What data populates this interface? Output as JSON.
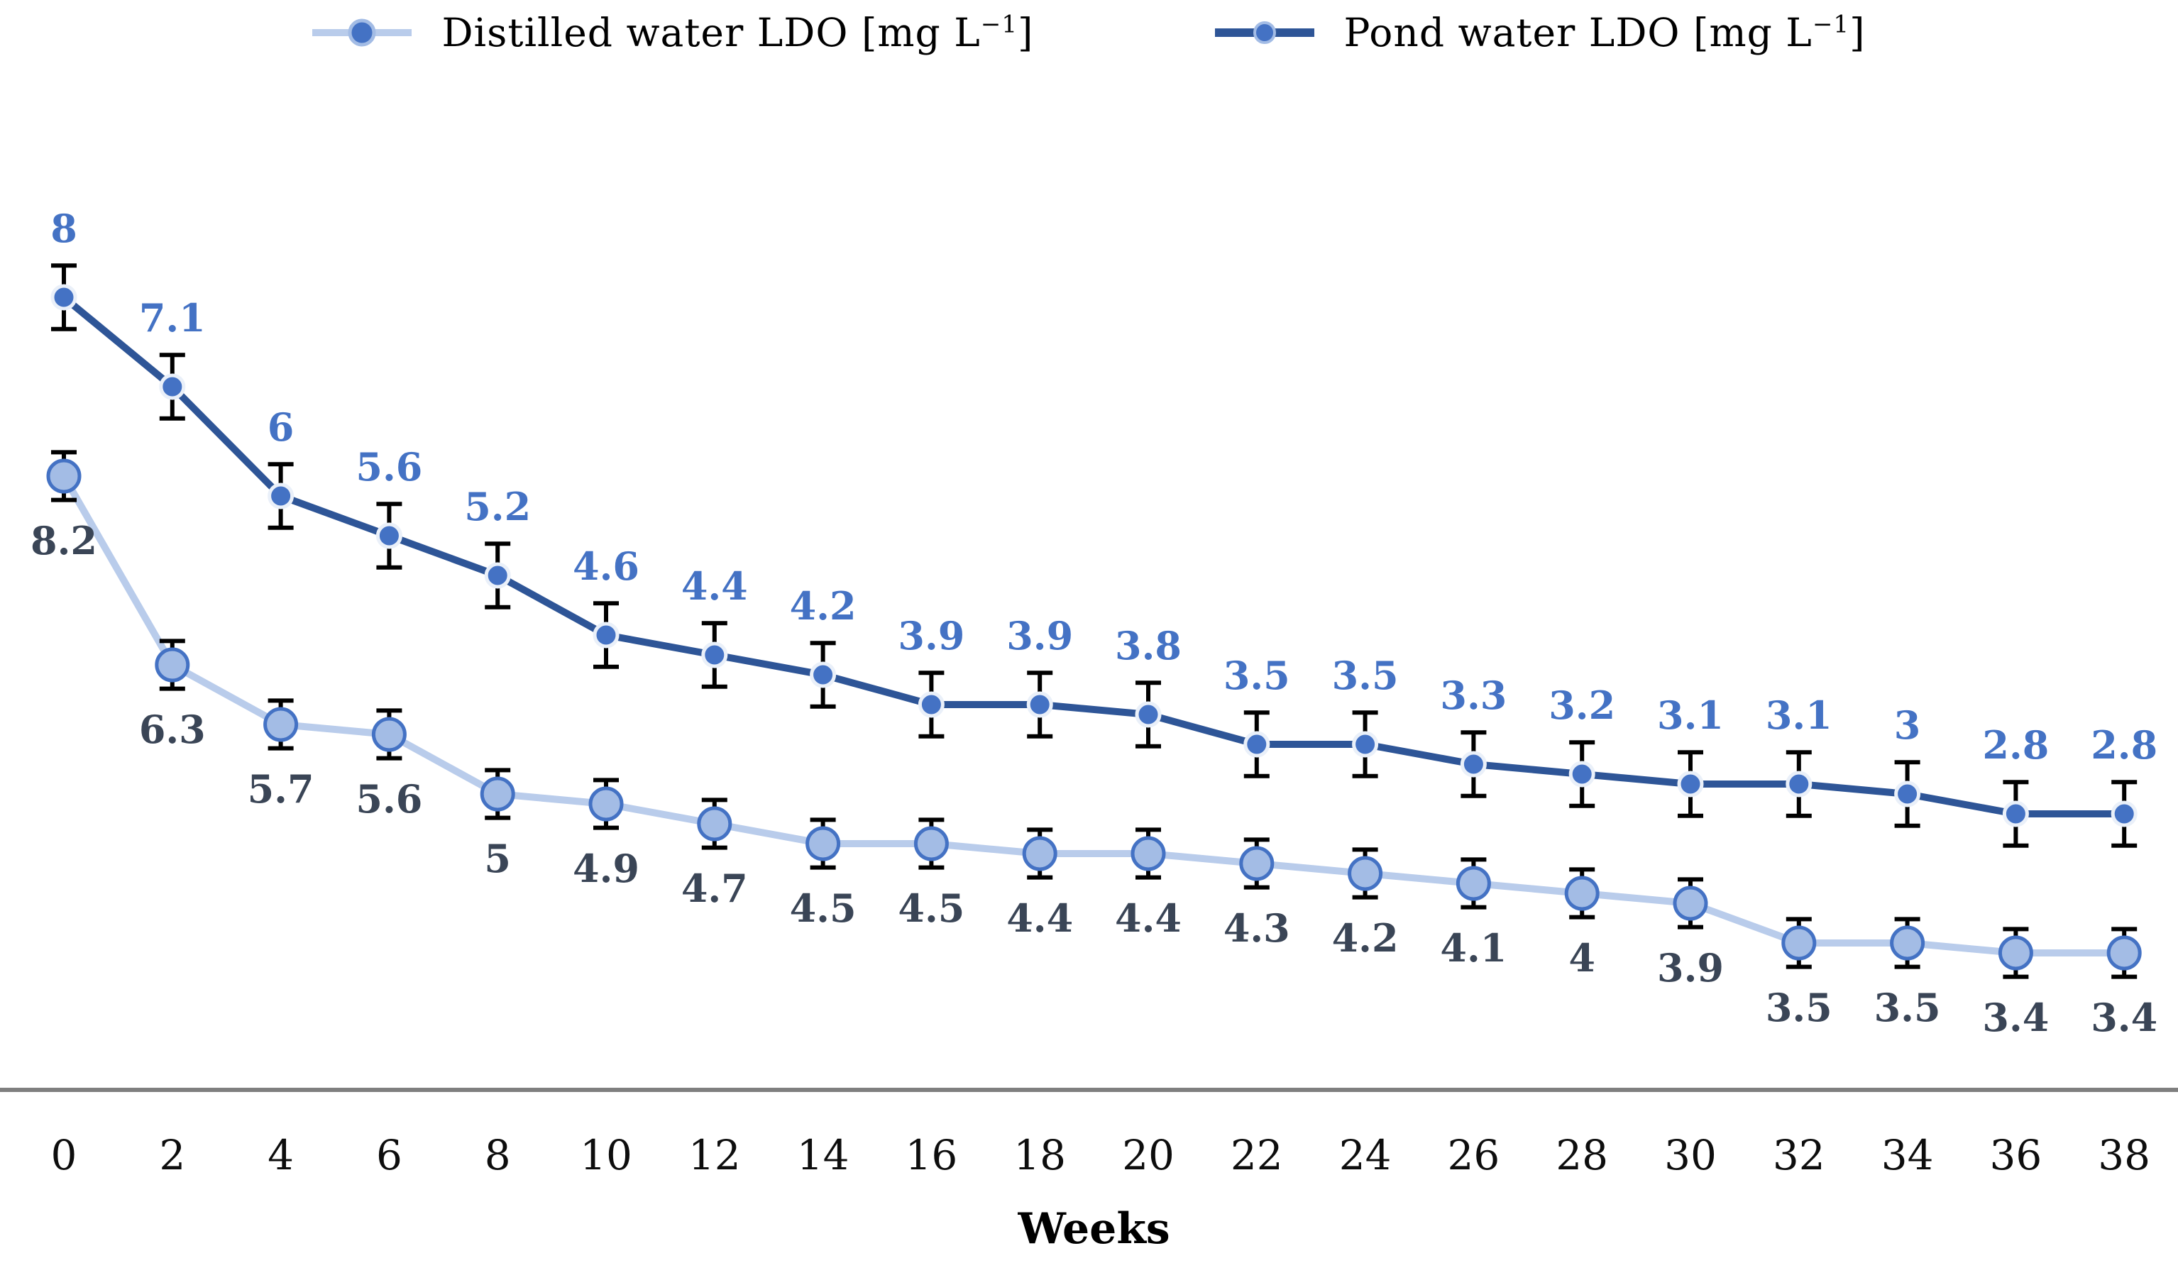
{
  "legend": {
    "items": [
      {
        "id": "distilled",
        "prefix": "Distilled water LDO [mg L",
        "sup": "−1",
        "suffix": "]"
      },
      {
        "id": "pond",
        "prefix": "Pond water LDO [mg L",
        "sup": "−1",
        "suffix": "]"
      }
    ]
  },
  "chart_data": {
    "type": "line",
    "title": "",
    "xlabel": "Weeks",
    "ylabel": "",
    "x": [
      0,
      2,
      4,
      6,
      8,
      10,
      12,
      14,
      16,
      18,
      20,
      22,
      24,
      26,
      28,
      30,
      32,
      34,
      36,
      38
    ],
    "x_tick_labels": [
      "0",
      "2",
      "4",
      "6",
      "8",
      "10",
      "12",
      "14",
      "16",
      "18",
      "20",
      "22",
      "24",
      "26",
      "28",
      "30",
      "32",
      "34",
      "36",
      "38"
    ],
    "grid": false,
    "y_axis_shown": false,
    "legend_position": "top",
    "series": [
      {
        "name": "Distilled water LDO [mg L⁻¹]",
        "values": [
          8.2,
          6.3,
          5.7,
          5.6,
          5,
          4.9,
          4.7,
          4.5,
          4.5,
          4.4,
          4.4,
          4.3,
          4.2,
          4.1,
          4,
          3.9,
          3.5,
          3.5,
          3.4,
          3.4
        ],
        "error": 0.24,
        "line_color": "#B9CCEB",
        "marker_fill": "#A3BCE5",
        "marker_stroke": "#4472C4",
        "marker_radius": 22,
        "label_color": "#3A4556",
        "label_position": "below",
        "axis_offset": 2
      },
      {
        "name": "Pond water LDO [mg L⁻¹]",
        "values": [
          8,
          7.1,
          6,
          5.6,
          5.2,
          4.6,
          4.4,
          4.2,
          3.9,
          3.9,
          3.8,
          3.5,
          3.5,
          3.3,
          3.2,
          3.1,
          3.1,
          3,
          2.8,
          2.8
        ],
        "error": 0.32,
        "line_color": "#2E5597",
        "marker_fill": "#4472C4",
        "marker_stroke": "#EAF0F9",
        "marker_radius": 16,
        "label_color": "#4472C4",
        "label_position": "above",
        "axis_offset": 0
      }
    ],
    "error_bar_color": "#000000",
    "axis_line_color": "#7F7F7F",
    "tick_label_color": "#0d0d0d",
    "xlabel_color": "#000000"
  }
}
